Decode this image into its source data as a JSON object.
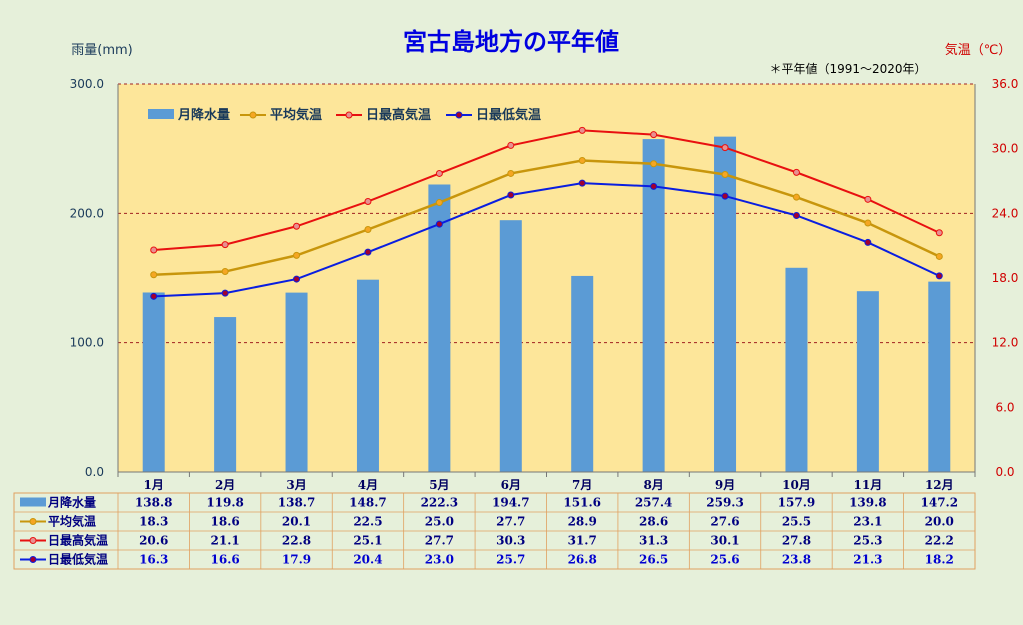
{
  "chart_data": {
    "type": "bar+line",
    "title": "宮古島地方の平年値",
    "subtitle": "＊平年値（1991～2020年）",
    "ylabel_left": "雨量(mm)",
    "ylabel_right": "気温（℃）",
    "ylim_left": [
      0,
      300
    ],
    "ylim_right": [
      0,
      36
    ],
    "yticks_left": [
      "0.0",
      "100.0",
      "200.0",
      "300.0"
    ],
    "yticks_right": [
      "0.0",
      "6.0",
      "12.0",
      "18.0",
      "24.0",
      "30.0",
      "36.0"
    ],
    "categories": [
      "1月",
      "2月",
      "3月",
      "4月",
      "5月",
      "6月",
      "7月",
      "8月",
      "9月",
      "10月",
      "11月",
      "12月"
    ],
    "legend_position": "top-left",
    "grid": "dashed horizontal",
    "series": [
      {
        "name": "月降水量",
        "kind": "bar",
        "axis": "left",
        "color": "#5b9bd5",
        "values": [
          138.8,
          119.8,
          138.7,
          148.7,
          222.3,
          194.7,
          151.6,
          257.4,
          259.3,
          157.9,
          139.8,
          147.2
        ],
        "labels": [
          "138.8",
          "119.8",
          "138.7",
          "148.7",
          "222.3",
          "194.7",
          "151.6",
          "257.4",
          "259.3",
          "157.9",
          "139.8",
          "147.2"
        ]
      },
      {
        "name": "平均気温",
        "kind": "line",
        "axis": "right",
        "color": "#c8960c",
        "marker_color": "#f5a623",
        "values": [
          18.3,
          18.6,
          20.1,
          22.5,
          25.0,
          27.7,
          28.9,
          28.6,
          27.6,
          25.5,
          23.1,
          20.0
        ],
        "labels": [
          "18.3",
          "18.6",
          "20.1",
          "22.5",
          "25.0",
          "27.7",
          "28.9",
          "28.6",
          "27.6",
          "25.5",
          "23.1",
          "20.0"
        ]
      },
      {
        "name": "日最高気温",
        "kind": "line",
        "axis": "right",
        "color": "#e81010",
        "marker_color": "#e79090",
        "values": [
          20.6,
          21.1,
          22.8,
          25.1,
          27.7,
          30.3,
          31.7,
          31.3,
          30.1,
          27.8,
          25.3,
          22.2
        ],
        "labels": [
          "20.6",
          "21.1",
          "22.8",
          "25.1",
          "27.7",
          "30.3",
          "31.7",
          "31.3",
          "30.1",
          "27.8",
          "25.3",
          "22.2"
        ]
      },
      {
        "name": "日最低気温",
        "kind": "line",
        "axis": "right",
        "color": "#0a1ee0",
        "marker_color": "#a00030",
        "values": [
          16.3,
          16.6,
          17.9,
          20.4,
          23.0,
          25.7,
          26.8,
          26.5,
          25.6,
          23.8,
          21.3,
          18.2
        ],
        "labels": [
          "16.3",
          "16.6",
          "17.9",
          "20.4",
          "23.0",
          "25.7",
          "26.8",
          "26.5",
          "25.6",
          "23.8",
          "21.3",
          "18.2"
        ]
      }
    ]
  },
  "colors": {
    "page_bg": "#e6f0da",
    "plot_bg": "#fde69a",
    "title": "#0000e0",
    "grid": "#a02020",
    "left_axis_text": "#1a3a5a",
    "right_axis_text": "#d00000",
    "table_border": "#e0a060"
  }
}
